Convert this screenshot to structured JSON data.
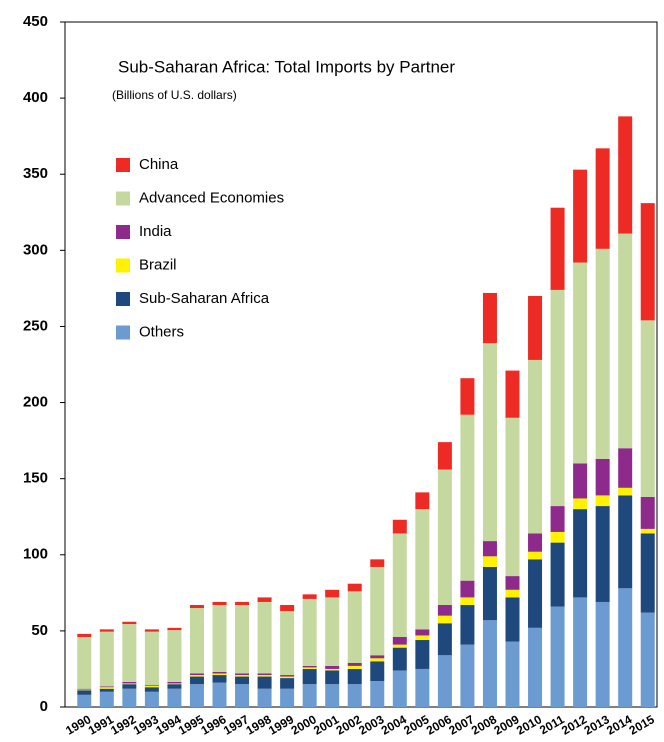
{
  "chart_data": {
    "type": "stacked_bar",
    "title": "Sub-Saharan Africa: Total Imports by Partner",
    "subtitle": "(Billions of U.S. dollars)",
    "categories": [
      "1990",
      "1991",
      "1992",
      "1993",
      "1994",
      "1995",
      "1996",
      "1997",
      "1998",
      "1999",
      "2000",
      "2001",
      "2002",
      "2003",
      "2004",
      "2005",
      "2006",
      "2007",
      "2008",
      "2009",
      "2010",
      "2011",
      "2012",
      "2013",
      "2014",
      "2015"
    ],
    "series": [
      {
        "name": "Others",
        "color": "#6c9bd2",
        "values": [
          8,
          10,
          12,
          10,
          12,
          15,
          16,
          15,
          12,
          12,
          15,
          15,
          15,
          17,
          24,
          25,
          34,
          41,
          57,
          43,
          52,
          66,
          72,
          69,
          78,
          62
        ]
      },
      {
        "name": "Sub-Saharan Africa",
        "color": "#1f497d",
        "values": [
          3,
          2,
          3,
          3,
          3,
          5,
          5,
          5,
          8,
          7,
          10,
          9,
          10,
          13,
          15,
          19,
          21,
          26,
          35,
          29,
          45,
          42,
          58,
          63,
          61,
          52
        ]
      },
      {
        "name": "Brazil",
        "color": "#fff200",
        "values": [
          0.5,
          1,
          0.5,
          1,
          0.5,
          1,
          1,
          1,
          1,
          1,
          1,
          1,
          2,
          2,
          2,
          3,
          5,
          5,
          7,
          5,
          5,
          7,
          7,
          7,
          5,
          3
        ]
      },
      {
        "name": "India",
        "color": "#8e2a8c",
        "values": [
          0.5,
          0.5,
          1,
          0.5,
          1,
          1,
          1,
          1,
          1,
          1,
          1,
          2,
          2,
          2,
          5,
          4,
          7,
          11,
          10,
          9,
          12,
          17,
          23,
          24,
          26,
          21
        ]
      },
      {
        "name": "Advanced Economies",
        "color": "#c4d89f",
        "values": [
          34,
          36,
          38,
          35,
          34,
          43,
          44,
          45,
          47,
          42,
          44,
          45,
          47,
          58,
          68,
          79,
          89,
          109,
          130,
          104,
          114,
          142,
          132,
          138,
          141,
          116
        ]
      },
      {
        "name": "China",
        "color": "#ee2a24",
        "values": [
          2,
          1.5,
          1.5,
          1.5,
          1.5,
          2,
          2,
          2,
          3,
          4,
          3,
          5,
          5,
          5,
          9,
          11,
          18,
          24,
          33,
          31,
          42,
          54,
          61,
          66,
          77,
          77
        ]
      }
    ],
    "ylim": [
      0,
      450
    ],
    "yticks": [
      0,
      50,
      100,
      150,
      200,
      250,
      300,
      350,
      400,
      450
    ]
  }
}
